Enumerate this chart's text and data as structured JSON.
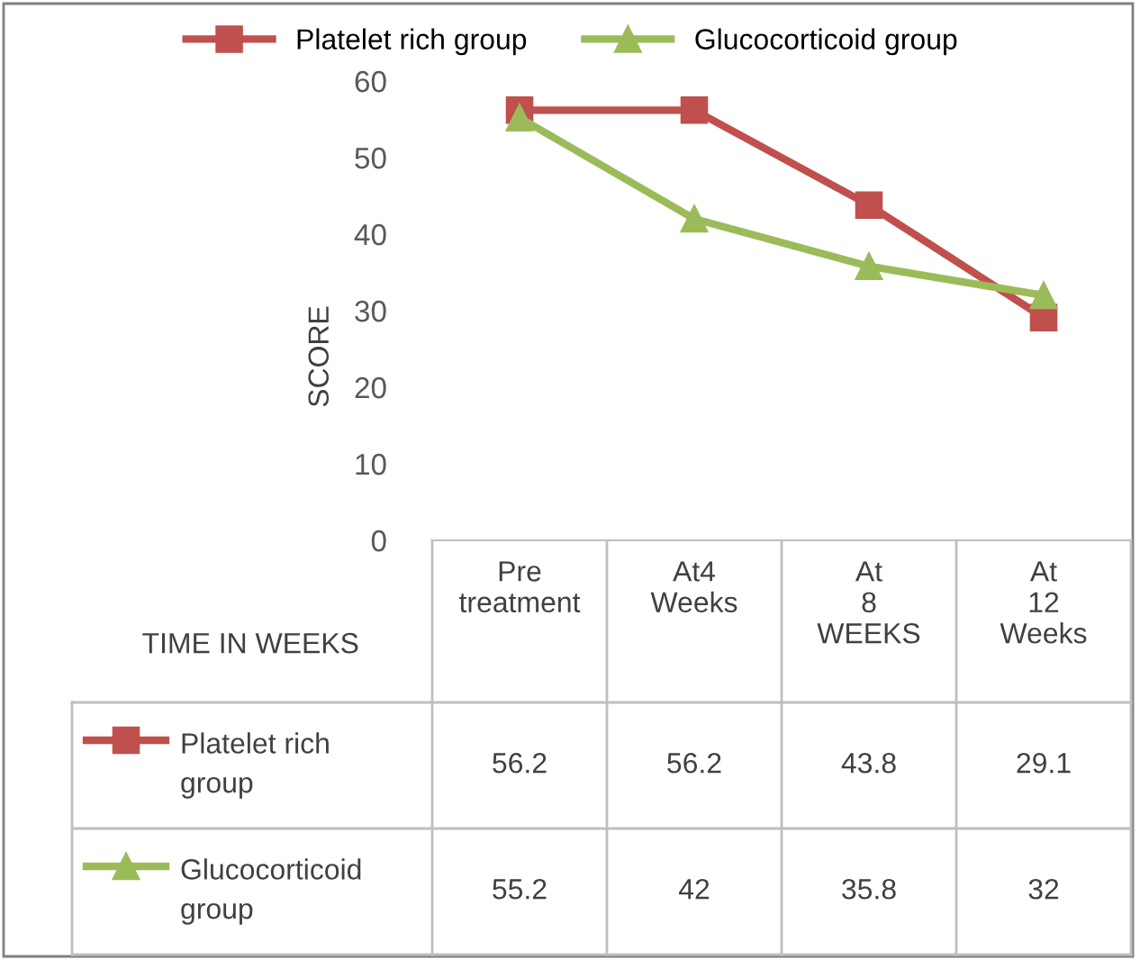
{
  "chart_data": {
    "type": "line",
    "xlabel": "TIME IN WEEKS",
    "ylabel": "SCORE",
    "categories": [
      "Pre treatment",
      "At4 Weeks",
      "At 8 WEEKS",
      "At 12 Weeks"
    ],
    "series": [
      {
        "name": "Platelet rich group",
        "color": "#c0504d",
        "marker": "square",
        "values": [
          56.2,
          56.2,
          43.8,
          29.1
        ]
      },
      {
        "name": "Glucocorticoid group",
        "color": "#9bbb59",
        "marker": "triangle",
        "values": [
          55.2,
          42,
          35.8,
          32
        ]
      }
    ],
    "ylim": [
      0,
      60
    ],
    "yticks": [
      0,
      10,
      20,
      30,
      40,
      50,
      60
    ],
    "grid": false,
    "legend": "top",
    "data_labels": true
  }
}
